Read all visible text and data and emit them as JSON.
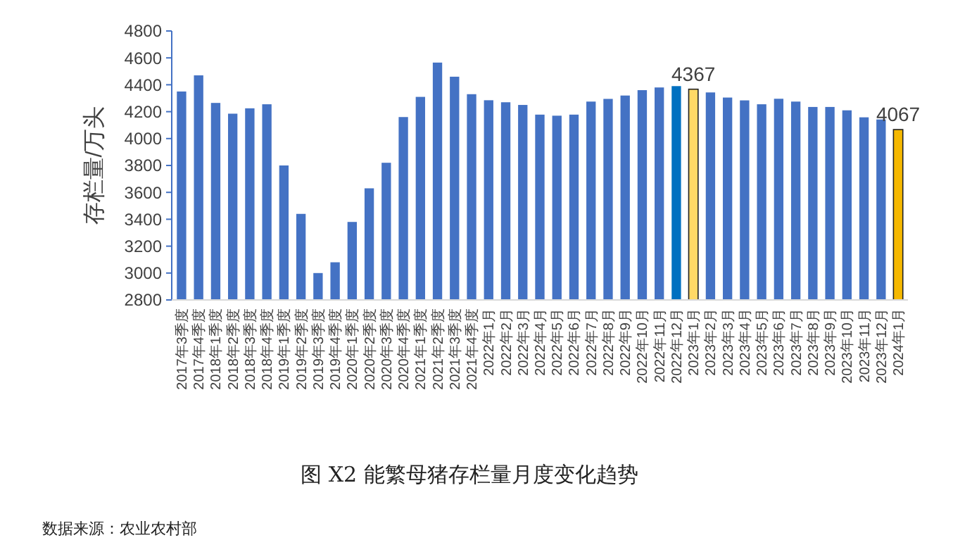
{
  "chart_data": {
    "type": "bar",
    "title": "图 X2 能繁母猪存栏量月度变化趋势",
    "ylabel": "存栏量/万头",
    "categories": [
      "2017年3季度",
      "2017年4季度",
      "2018年1季度",
      "2018年2季度",
      "2018年3季度",
      "2018年4季度",
      "2019年1季度",
      "2019年2季度",
      "2019年3季度",
      "2019年4季度",
      "2020年1季度",
      "2020年2季度",
      "2020年3季度",
      "2020年4季度",
      "2021年1季度",
      "2021年2季度",
      "2021年3季度",
      "2021年4季度",
      "2022年1月",
      "2022年2月",
      "2022年3月",
      "2022年4月",
      "2022年5月",
      "2022年6月",
      "2022年7月",
      "2022年8月",
      "2022年9月",
      "2022年10月",
      "2022年11月",
      "2022年12月",
      "2023年1月",
      "2023年2月",
      "2023年3月",
      "2023年4月",
      "2023年5月",
      "2023年6月",
      "2023年7月",
      "2023年8月",
      "2023年9月",
      "2023年10月",
      "2023年11月",
      "2023年12月",
      "2024年1月"
    ],
    "values": [
      4350,
      4470,
      4265,
      4185,
      4225,
      4255,
      3800,
      3440,
      3000,
      3080,
      3380,
      3630,
      3820,
      4160,
      4310,
      4565,
      4460,
      4330,
      4285,
      4270,
      4250,
      4178,
      4170,
      4178,
      4275,
      4295,
      4320,
      4360,
      4380,
      4390,
      4367,
      4343,
      4305,
      4284,
      4255,
      4296,
      4275,
      4235,
      4235,
      4210,
      4158,
      4142,
      4067
    ],
    "colors": [
      "#4472c4",
      "#4472c4",
      "#4472c4",
      "#4472c4",
      "#4472c4",
      "#4472c4",
      "#4472c4",
      "#4472c4",
      "#4472c4",
      "#4472c4",
      "#4472c4",
      "#4472c4",
      "#4472c4",
      "#4472c4",
      "#4472c4",
      "#4472c4",
      "#4472c4",
      "#4472c4",
      "#4472c4",
      "#4472c4",
      "#4472c4",
      "#4472c4",
      "#4472c4",
      "#4472c4",
      "#4472c4",
      "#4472c4",
      "#4472c4",
      "#4472c4",
      "#4472c4",
      "#0070c0",
      "#ffd966",
      "#4472c4",
      "#4472c4",
      "#4472c4",
      "#4472c4",
      "#4472c4",
      "#4472c4",
      "#4472c4",
      "#4472c4",
      "#4472c4",
      "#4472c4",
      "#4472c4",
      "#f5b800"
    ],
    "value_labels": [
      null,
      null,
      null,
      null,
      null,
      null,
      null,
      null,
      null,
      null,
      null,
      null,
      null,
      null,
      null,
      null,
      null,
      null,
      null,
      null,
      null,
      null,
      null,
      null,
      null,
      null,
      null,
      null,
      null,
      null,
      "4367",
      null,
      null,
      null,
      null,
      null,
      null,
      null,
      null,
      null,
      null,
      null,
      "4067"
    ],
    "ylim": [
      2800,
      4800
    ],
    "yticks": [
      2800,
      3000,
      3200,
      3400,
      3600,
      3800,
      4000,
      4200,
      4400,
      4600,
      4800
    ],
    "annotations": [
      "数据来源：农业农村部"
    ],
    "grid": false
  }
}
